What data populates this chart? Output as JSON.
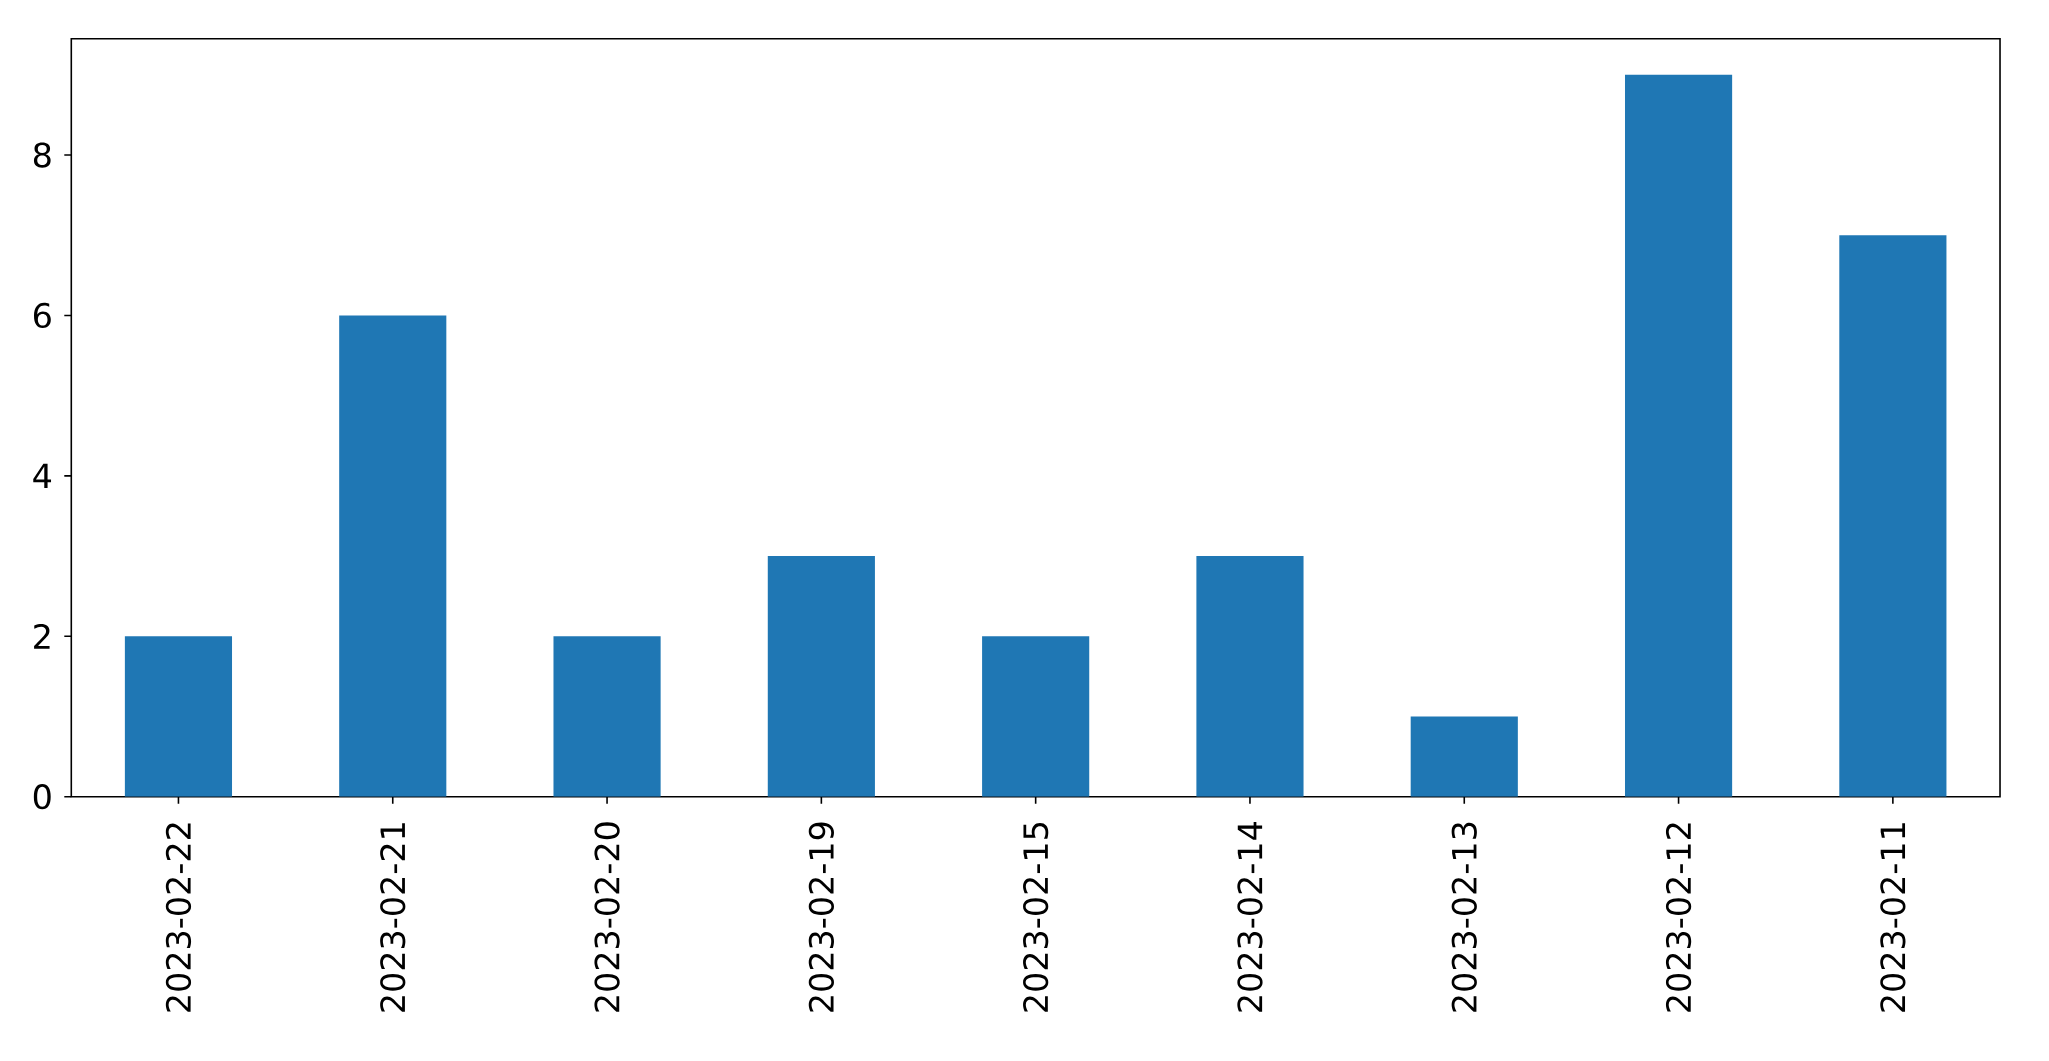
{
  "chart_data": {
    "type": "bar",
    "categories": [
      "2023-02-22",
      "2023-02-21",
      "2023-02-20",
      "2023-02-19",
      "2023-02-15",
      "2023-02-14",
      "2023-02-13",
      "2023-02-12",
      "2023-02-11"
    ],
    "values": [
      2,
      6,
      2,
      3,
      2,
      3,
      1,
      9,
      7
    ],
    "color": "#1f77b4",
    "ylim": [
      0,
      9.45
    ],
    "yticks": [
      0,
      2,
      4,
      6,
      8
    ]
  }
}
